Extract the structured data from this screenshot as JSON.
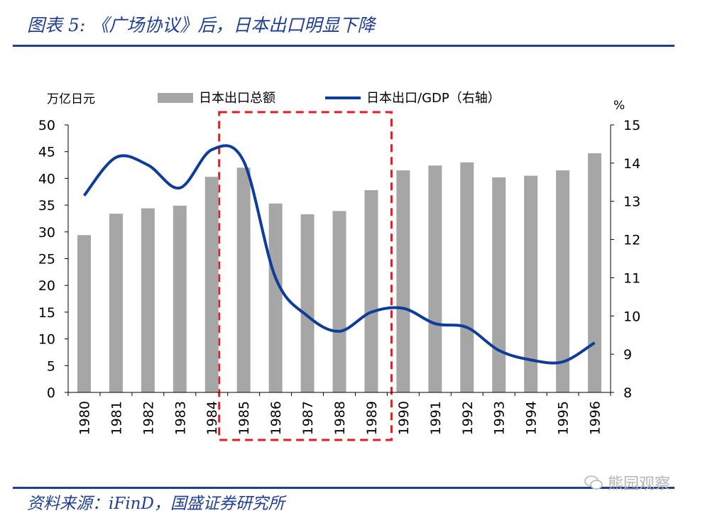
{
  "header": {
    "title": "图表 5: 《广场协议》后，日本出口明显下降"
  },
  "footer": {
    "source": "资料来源：iFinD，国盛证券研究所",
    "watermark": "熊园观察"
  },
  "colors": {
    "bar": "#a6a6a6",
    "line": "#0d3c9b",
    "highlight": "#e8191f",
    "title": "#1f3f94"
  },
  "chart_data": {
    "type": "bar+line",
    "title": "",
    "categories": [
      "1980",
      "1981",
      "1982",
      "1983",
      "1984",
      "1985",
      "1986",
      "1987",
      "1988",
      "1989",
      "1990",
      "1991",
      "1992",
      "1993",
      "1994",
      "1995",
      "1996"
    ],
    "series": [
      {
        "name": "日本出口总额",
        "type": "bar",
        "axis": "left",
        "values": [
          29.4,
          33.4,
          34.4,
          34.9,
          40.3,
          42.0,
          35.3,
          33.3,
          33.9,
          37.8,
          41.5,
          42.4,
          43.0,
          40.2,
          40.5,
          41.5,
          44.7
        ]
      },
      {
        "name": "日本出口/GDP（右轴）",
        "type": "line",
        "axis": "right",
        "values": [
          13.15,
          14.15,
          13.95,
          13.35,
          14.35,
          14.05,
          11.0,
          10.0,
          9.6,
          10.1,
          10.2,
          9.8,
          9.7,
          9.1,
          8.85,
          8.8,
          9.3
        ]
      }
    ],
    "left_axis": {
      "unit": "万亿日元",
      "min": 0,
      "max": 50,
      "ticks": [
        "0",
        "5",
        "10",
        "15",
        "20",
        "25",
        "30",
        "35",
        "40",
        "45",
        "50"
      ]
    },
    "right_axis": {
      "unit": "%",
      "min": 8,
      "max": 15,
      "ticks": [
        "8",
        "9",
        "10",
        "11",
        "12",
        "13",
        "14",
        "15"
      ]
    },
    "highlight_range": [
      "1985",
      "1989"
    ],
    "legend": "top",
    "grid": false
  }
}
